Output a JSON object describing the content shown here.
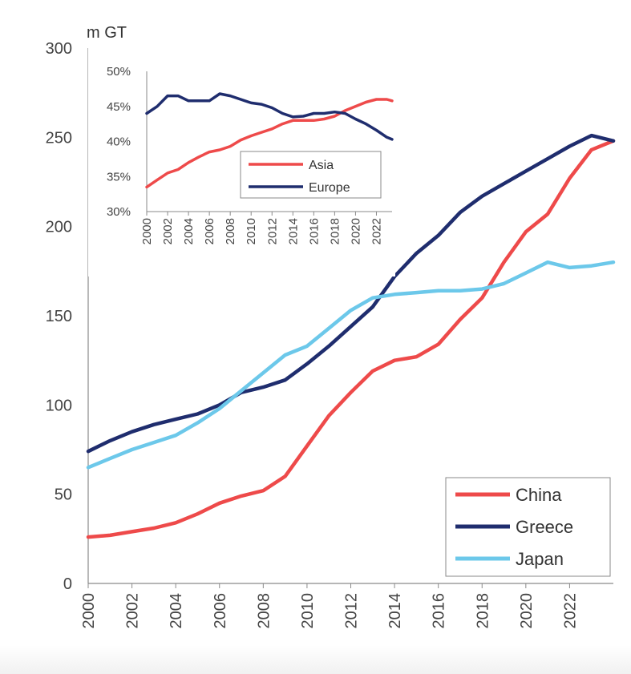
{
  "chart_data": [
    {
      "type": "line",
      "unit_label": "m GT",
      "xlim": [
        2000,
        2024
      ],
      "ylim": [
        0,
        300
      ],
      "x_ticks": [
        2000,
        2002,
        2004,
        2006,
        2008,
        2010,
        2012,
        2014,
        2016,
        2018,
        2020,
        2022
      ],
      "y_ticks": [
        0,
        50,
        100,
        150,
        200,
        250,
        300
      ],
      "legend_position": "bottom-right",
      "series": [
        {
          "name": "China",
          "color": "#ee4a4a",
          "x": [
            2000,
            2001,
            2002,
            2003,
            2004,
            2005,
            2006,
            2007,
            2008,
            2009,
            2010,
            2011,
            2012,
            2013,
            2014,
            2015,
            2016,
            2017,
            2018,
            2019,
            2020,
            2021,
            2022,
            2023,
            2024
          ],
          "y": [
            26,
            27,
            29,
            31,
            34,
            39,
            45,
            49,
            52,
            60,
            77,
            94,
            107,
            119,
            125,
            127,
            134,
            148,
            160,
            180,
            197,
            207,
            227,
            243,
            248
          ]
        },
        {
          "name": "Greece",
          "color": "#1f2d6e",
          "x": [
            2000,
            2001,
            2002,
            2003,
            2004,
            2005,
            2006,
            2007,
            2008,
            2009,
            2010,
            2011,
            2012,
            2013,
            2014,
            2015,
            2016,
            2017,
            2018,
            2019,
            2020,
            2021,
            2022,
            2023,
            2024
          ],
          "y": [
            74,
            80,
            85,
            89,
            92,
            95,
            100,
            107,
            110,
            114,
            123,
            133,
            144,
            155,
            172,
            185,
            195,
            208,
            217,
            224,
            231,
            238,
            245,
            251,
            248
          ]
        },
        {
          "name": "Japan",
          "color": "#6cc8ea",
          "x": [
            2000,
            2001,
            2002,
            2003,
            2004,
            2005,
            2006,
            2007,
            2008,
            2009,
            2010,
            2011,
            2012,
            2013,
            2014,
            2015,
            2016,
            2017,
            2018,
            2019,
            2020,
            2021,
            2022,
            2023,
            2024
          ],
          "y": [
            65,
            70,
            75,
            79,
            83,
            90,
            98,
            108,
            118,
            128,
            133,
            143,
            153,
            160,
            162,
            163,
            164,
            164,
            165,
            168,
            174,
            180,
            177,
            178,
            180
          ]
        }
      ]
    },
    {
      "type": "line",
      "inset": true,
      "xlim": [
        2000,
        2023.5
      ],
      "ylim": [
        30,
        50
      ],
      "x_ticks": [
        2000,
        2002,
        2004,
        2006,
        2008,
        2010,
        2012,
        2014,
        2016,
        2018,
        2020,
        2022
      ],
      "y_ticks": [
        30,
        35,
        40,
        45,
        50
      ],
      "y_tick_labels": [
        "30%",
        "35%",
        "40%",
        "45%",
        "50%"
      ],
      "legend_position": "bottom-right",
      "series": [
        {
          "name": "Asia",
          "color": "#ee4a4a",
          "x": [
            2000,
            2001,
            2002,
            2003,
            2004,
            2005,
            2006,
            2007,
            2008,
            2009,
            2010,
            2011,
            2012,
            2013,
            2014,
            2015,
            2016,
            2017,
            2018,
            2019,
            2020,
            2021,
            2022,
            2023,
            2023.5
          ],
          "y": [
            33.5,
            34.5,
            35.5,
            36.0,
            37.0,
            37.8,
            38.5,
            38.8,
            39.3,
            40.2,
            40.8,
            41.3,
            41.8,
            42.5,
            43.0,
            43.0,
            43.0,
            43.2,
            43.6,
            44.4,
            45.0,
            45.6,
            46.0,
            46.0,
            45.8
          ]
        },
        {
          "name": "Europe",
          "color": "#1f2d6e",
          "x": [
            2000,
            2001,
            2002,
            2003,
            2004,
            2005,
            2006,
            2007,
            2008,
            2009,
            2010,
            2011,
            2012,
            2013,
            2014,
            2015,
            2016,
            2017,
            2018,
            2019,
            2020,
            2021,
            2022,
            2023,
            2023.5
          ],
          "y": [
            44.0,
            45.0,
            46.5,
            46.5,
            45.8,
            45.8,
            45.8,
            46.8,
            46.5,
            46.0,
            45.5,
            45.3,
            44.8,
            44.0,
            43.5,
            43.6,
            44.0,
            44.0,
            44.2,
            44.0,
            43.2,
            42.5,
            41.6,
            40.6,
            40.3
          ]
        }
      ]
    }
  ]
}
